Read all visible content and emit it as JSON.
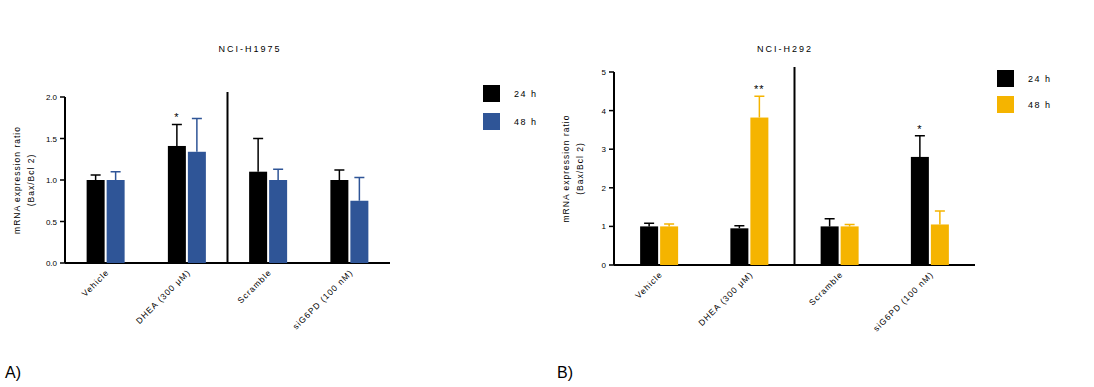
{
  "chart_data": [
    {
      "type": "bar",
      "title": "NCI-H1975",
      "panel_label": "A)",
      "y_label": [
        "mRNA expression ratio",
        "(Bax/Bcl 2)"
      ],
      "categories": [
        "Vehicle",
        "DHEA (300 μM)",
        "Scramble",
        "siG6PD (100 nM)"
      ],
      "ylim": [
        0,
        2
      ],
      "yticks": [
        {
          "value": 0,
          "label": "0.0"
        },
        {
          "value": 0.5,
          "label": "0.5"
        },
        {
          "value": 1,
          "label": "1.0"
        },
        {
          "value": 1.5,
          "label": "1.5"
        },
        {
          "value": 2,
          "label": "2.0"
        }
      ],
      "legend": "right",
      "series": [
        {
          "name": "24 h",
          "color": "#000000",
          "values": [
            1.0,
            1.41,
            1.1,
            1.0
          ],
          "errors": [
            0.06,
            0.26,
            0.4,
            0.12
          ],
          "significance": [
            null,
            "*",
            null,
            null
          ]
        },
        {
          "name": "48 h",
          "color": "#2f5597",
          "values": [
            1.0,
            1.34,
            1.0,
            0.75
          ],
          "errors": [
            0.1,
            0.4,
            0.13,
            0.28
          ],
          "significance": [
            null,
            null,
            null,
            null
          ]
        }
      ]
    },
    {
      "type": "bar",
      "title": "NCI-H292",
      "panel_label": "B)",
      "y_label": [
        "mRNA expression ratio",
        "(Bax/Bcl 2)"
      ],
      "categories": [
        "Vehicle",
        "DHEA (300 μM)",
        "Scramble",
        "siG6PD (100 nM)"
      ],
      "ylim": [
        0,
        5
      ],
      "yticks": [
        0,
        1,
        2,
        3,
        4,
        5
      ],
      "legend": "right",
      "series": [
        {
          "name": "24 h",
          "color": "#000000",
          "values": [
            1.0,
            0.95,
            1.0,
            2.8
          ],
          "errors": [
            0.08,
            0.07,
            0.2,
            0.55
          ],
          "significance": [
            null,
            null,
            null,
            "*"
          ]
        },
        {
          "name": "48 h",
          "color": "#f5b400",
          "values": [
            1.0,
            3.82,
            1.0,
            1.05
          ],
          "errors": [
            0.06,
            0.55,
            0.05,
            0.35
          ],
          "significance": [
            null,
            "**",
            null,
            null
          ]
        }
      ]
    }
  ]
}
